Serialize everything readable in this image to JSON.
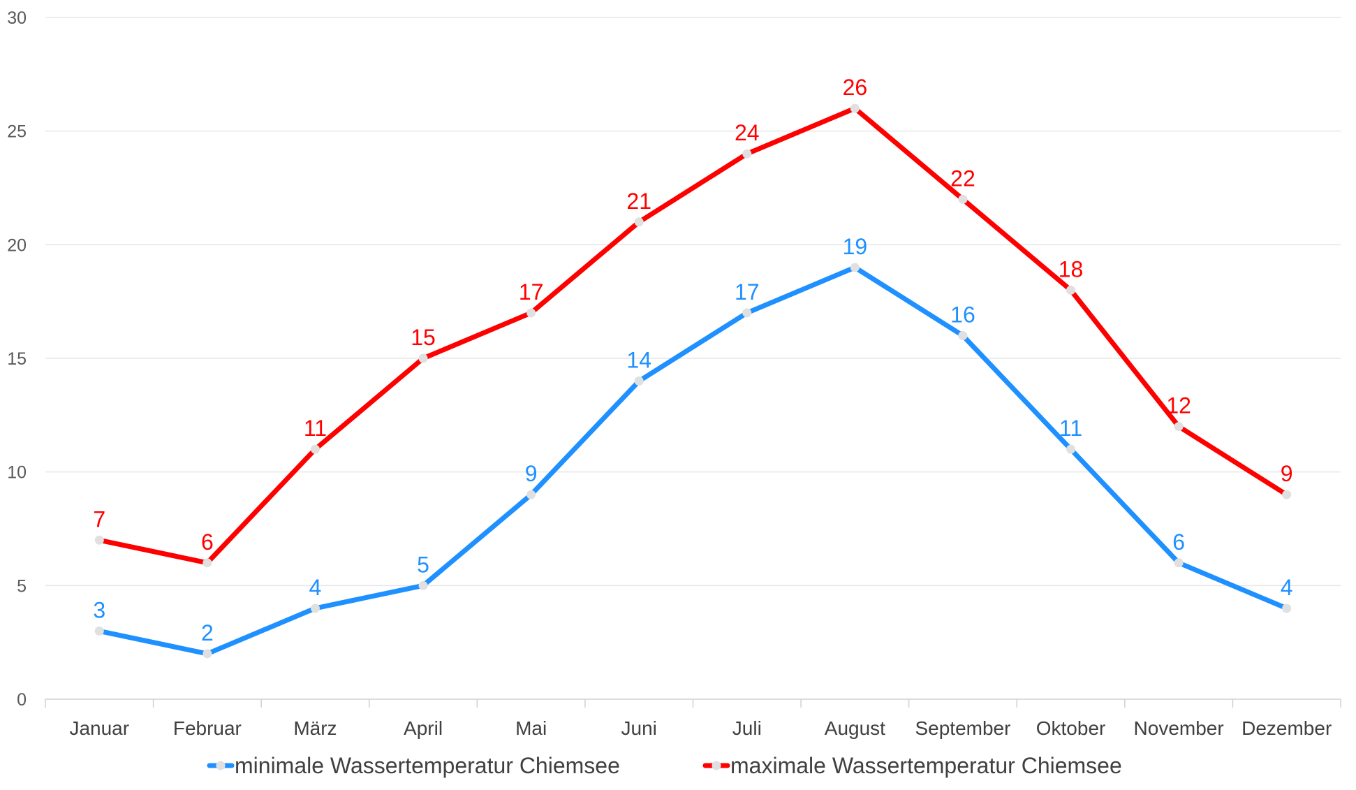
{
  "chart_data": {
    "type": "line",
    "title": "",
    "xlabel": "",
    "ylabel": "",
    "categories": [
      "Januar",
      "Februar",
      "März",
      "April",
      "Mai",
      "Juni",
      "Juli",
      "August",
      "September",
      "Oktober",
      "November",
      "Dezember"
    ],
    "ylim": [
      0,
      30
    ],
    "yticks": [
      0,
      5,
      10,
      15,
      20,
      25,
      30
    ],
    "grid": true,
    "legend": "bottom",
    "data_labels": true,
    "series": [
      {
        "name": "minimale Wassertemperatur Chiemsee",
        "color": "#1E90FF",
        "values": [
          3,
          2,
          4,
          5,
          9,
          14,
          17,
          19,
          16,
          11,
          6,
          4
        ]
      },
      {
        "name": "maximale Wassertemperatur Chiemsee",
        "color": "#FF0000",
        "values": [
          7,
          6,
          11,
          15,
          17,
          21,
          24,
          26,
          22,
          18,
          12,
          9
        ]
      }
    ],
    "marker_color": "#E0E0E0",
    "grid_color": "#E6E6E6"
  }
}
